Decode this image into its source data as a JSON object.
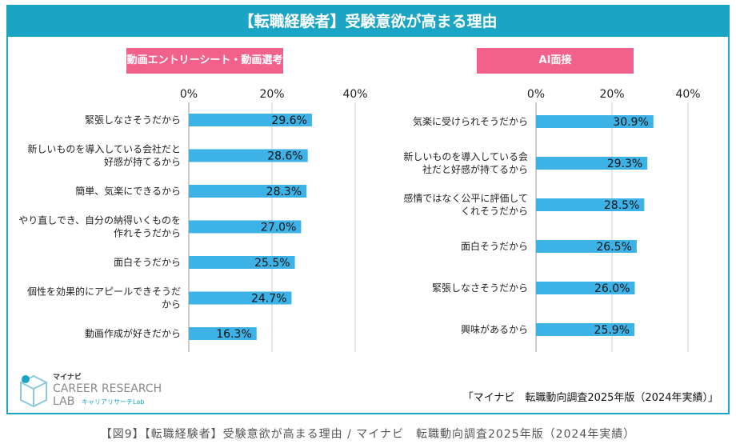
{
  "banner_title": "【転職経験者】受験意欲が高まる理由",
  "colors": {
    "accent": "#1aa5c4",
    "bar": "#3db2e6",
    "tag": "#f2608c",
    "grid": "#cccccc"
  },
  "chart_data": [
    {
      "type": "bar",
      "orientation": "horizontal",
      "title": "動画エントリーシート・動画選考",
      "x_ticks": [
        "0%",
        "20%",
        "40%"
      ],
      "xlim": [
        0,
        40
      ],
      "categories": [
        [
          "緊張しなさそうだから"
        ],
        [
          "新しいものを導入している会社だと",
          "好感が持てるから"
        ],
        [
          "簡単、気楽にできるから"
        ],
        [
          "やり直しでき、自分の納得いくものを",
          "作れそうだから"
        ],
        [
          "面白そうだから"
        ],
        [
          "個性を効果的にアピールできそうだ",
          "から"
        ],
        [
          "動画作成が好きだから"
        ]
      ],
      "values": [
        29.6,
        28.6,
        28.3,
        27.0,
        25.5,
        24.7,
        16.3
      ],
      "value_labels": [
        "29.6%",
        "28.6%",
        "28.3%",
        "27.0%",
        "25.5%",
        "24.7%",
        "16.3%"
      ]
    },
    {
      "type": "bar",
      "orientation": "horizontal",
      "title": "AI面接",
      "x_ticks": [
        "0%",
        "20%",
        "40%"
      ],
      "xlim": [
        0,
        40
      ],
      "categories": [
        [
          "気楽に受けられそうだから"
        ],
        [
          "新しいものを導入している会",
          "社だと好感が持てるから"
        ],
        [
          "感情ではなく公平に評価して",
          "くれそうだから"
        ],
        [
          "面白そうだから"
        ],
        [
          "緊張しなさそうだから"
        ],
        [
          "興味があるから"
        ]
      ],
      "values": [
        30.9,
        29.3,
        28.5,
        26.5,
        26.0,
        25.9
      ],
      "value_labels": [
        "30.9%",
        "29.3%",
        "28.5%",
        "26.5%",
        "26.0%",
        "25.9%"
      ]
    }
  ],
  "logo": {
    "brand_small": "マイナビ",
    "line1": "CAREER RESEARCH",
    "line2": "LAB",
    "sub": "キャリアリサーチLab"
  },
  "source": "「マイナビ　転職動向調査2025年版（2024年実績）」",
  "caption": "【図9】【転職経験者】受験意欲が高まる理由 / マイナビ　転職動向調査2025年版（2024年実績）"
}
